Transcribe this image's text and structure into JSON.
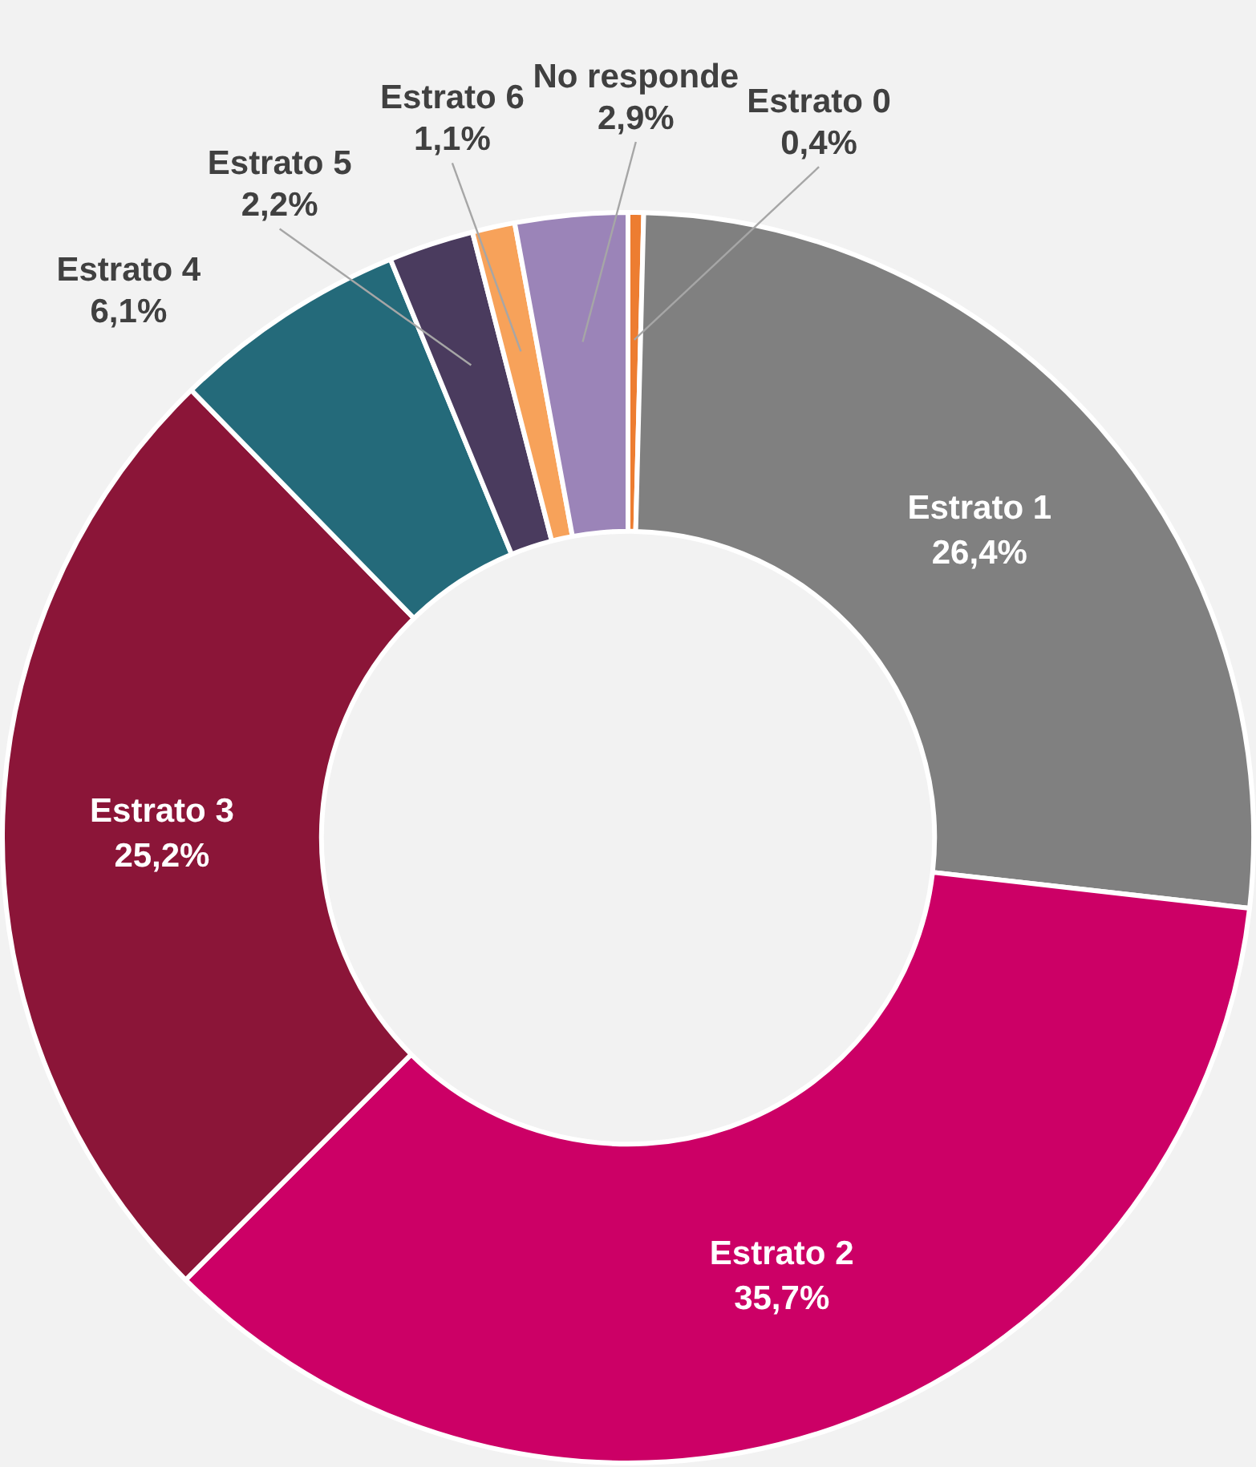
{
  "chart_data": {
    "type": "donut",
    "categories": [
      "Estrato 0",
      "Estrato 1",
      "Estrato 2",
      "Estrato 3",
      "Estrato 4",
      "Estrato 5",
      "Estrato 6",
      "No responde"
    ],
    "values": [
      0.4,
      26.4,
      35.7,
      25.2,
      6.1,
      2.2,
      1.1,
      2.9
    ],
    "colors": [
      "#ed7d31",
      "#808080",
      "#cc0066",
      "#8b1538",
      "#246a7a",
      "#4a3b5e",
      "#f7a25a",
      "#9b84b8"
    ],
    "value_labels": [
      "0,4%",
      "26,4%",
      "35,7%",
      "25,2%",
      "6,1%",
      "2,2%",
      "1,1%",
      "2,9%"
    ]
  }
}
